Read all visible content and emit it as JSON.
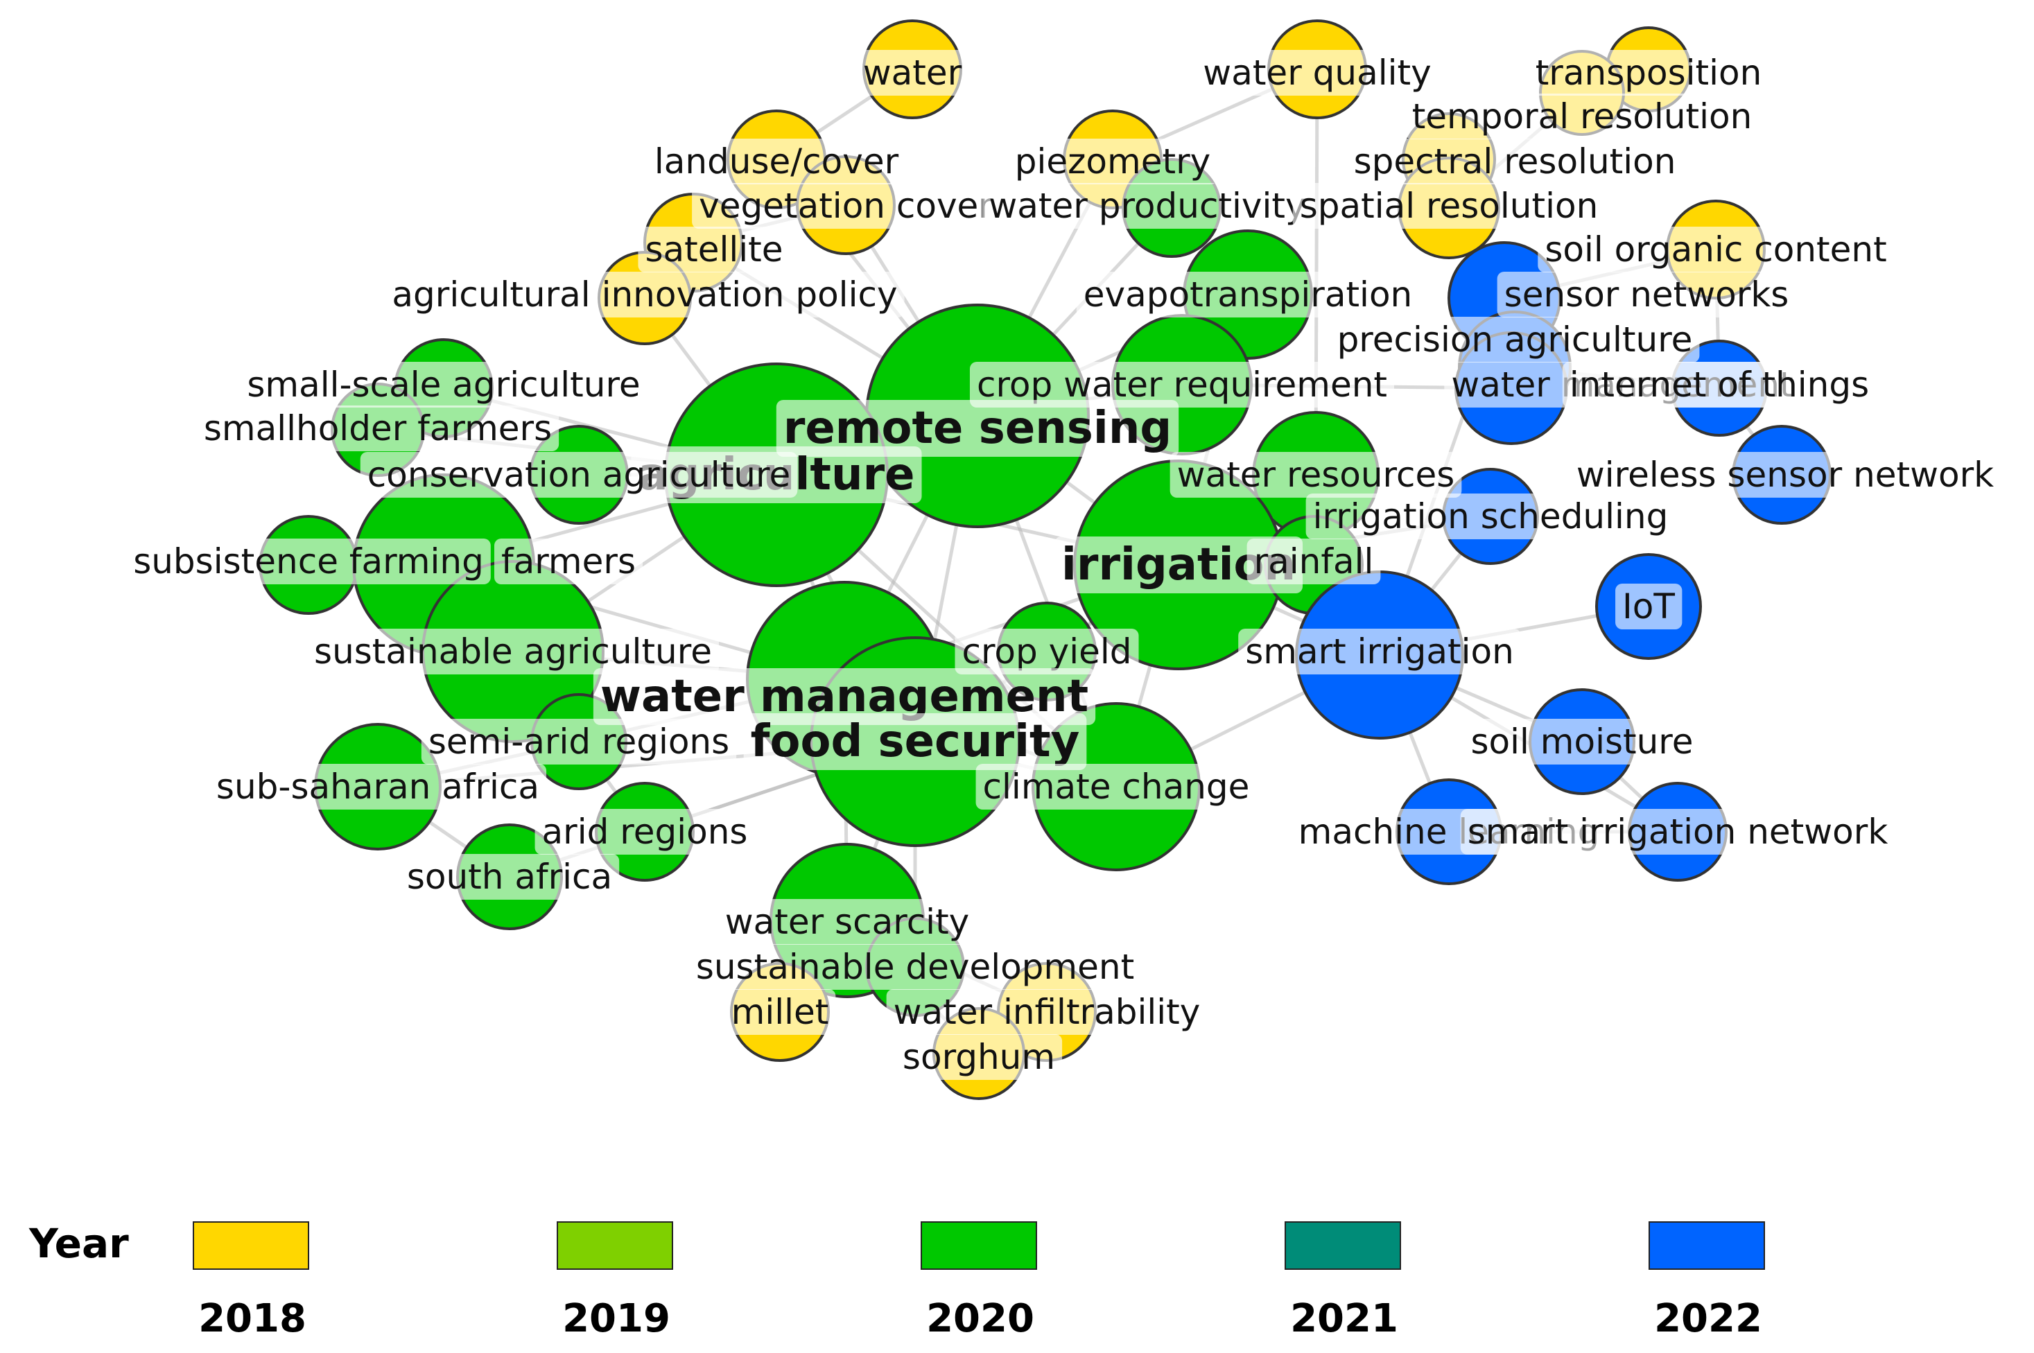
{
  "legend": {
    "title": "Year",
    "items": [
      {
        "year": "2018",
        "color": "#FFD700"
      },
      {
        "year": "2019",
        "color": "#7FD000"
      },
      {
        "year": "2020",
        "color": "#00C800"
      },
      {
        "year": "2021",
        "color": "#008C78"
      },
      {
        "year": "2022",
        "color": "#0064FF"
      }
    ]
  },
  "network": {
    "node_colors": {
      "2018": "#FFD700",
      "2020": "#00C800",
      "2022": "#0064FF"
    },
    "nodes": [
      {
        "id": "water",
        "label": "water",
        "year": "2018"
      },
      {
        "id": "water-quality",
        "label": "water quality",
        "year": "2018"
      },
      {
        "id": "transposition",
        "label": "transposition",
        "year": "2018"
      },
      {
        "id": "temporal-resolution",
        "label": "temporal resolution",
        "year": "2018"
      },
      {
        "id": "landuse-cover",
        "label": "landuse/cover",
        "year": "2018"
      },
      {
        "id": "piezometry",
        "label": "piezometry",
        "year": "2018"
      },
      {
        "id": "spectral-resolution",
        "label": "spectral resolution",
        "year": "2018"
      },
      {
        "id": "vegetation-cover",
        "label": "vegetation cover",
        "year": "2018"
      },
      {
        "id": "water-productivity",
        "label": "water productivity",
        "year": "2020"
      },
      {
        "id": "spatial-resolution",
        "label": "spatial resolution",
        "year": "2018"
      },
      {
        "id": "satellite",
        "label": "satellite",
        "year": "2018"
      },
      {
        "id": "soil-organic-content",
        "label": "soil organic content",
        "year": "2018"
      },
      {
        "id": "agricultural-innovation-policy",
        "label": "agricultural innovation policy",
        "year": "2018"
      },
      {
        "id": "evapotranspiration",
        "label": "evapotranspiration",
        "year": "2020"
      },
      {
        "id": "sensor-networks",
        "label": "sensor networks",
        "year": "2022"
      },
      {
        "id": "precision-agriculture",
        "label": "precision agriculture",
        "year": "2022"
      },
      {
        "id": "small-scale-agriculture",
        "label": "small-scale agriculture",
        "year": "2020"
      },
      {
        "id": "crop-water-requirement",
        "label": "crop water requirement",
        "year": "2020"
      },
      {
        "id": "water-management-2",
        "label": "water management",
        "year": "2022"
      },
      {
        "id": "internet-of-things",
        "label": "internet of things",
        "year": "2022"
      },
      {
        "id": "remote-sensing",
        "label": "remote sensing",
        "year": "2020",
        "bold": true
      },
      {
        "id": "smallholder-farmers",
        "label": "smallholder farmers",
        "year": "2020"
      },
      {
        "id": "agriculture",
        "label": "agriculture",
        "year": "2020",
        "bold": true
      },
      {
        "id": "conservation-agriculture",
        "label": "conservation agriculture",
        "year": "2020"
      },
      {
        "id": "water-resources",
        "label": "water resources",
        "year": "2020"
      },
      {
        "id": "wireless-sensor-network",
        "label": "wireless sensor network",
        "year": "2022"
      },
      {
        "id": "irrigation-scheduling",
        "label": "irrigation scheduling",
        "year": "2022"
      },
      {
        "id": "subsistence-farming",
        "label": "subsistence farming",
        "year": "2020"
      },
      {
        "id": "farmers",
        "label": "farmers",
        "year": "2020"
      },
      {
        "id": "irrigation",
        "label": "irrigation",
        "year": "2020",
        "bold": true
      },
      {
        "id": "rainfall",
        "label": "rainfall",
        "year": "2020"
      },
      {
        "id": "iot",
        "label": "IoT",
        "year": "2022"
      },
      {
        "id": "sustainable-agriculture",
        "label": "sustainable agriculture",
        "year": "2020"
      },
      {
        "id": "crop-yield",
        "label": "crop yield",
        "year": "2020"
      },
      {
        "id": "smart-irrigation",
        "label": "smart irrigation",
        "year": "2022"
      },
      {
        "id": "water-management",
        "label": "water management",
        "year": "2020",
        "bold": true
      },
      {
        "id": "semi-arid-regions",
        "label": "semi-arid regions",
        "year": "2020"
      },
      {
        "id": "food-security",
        "label": "food security",
        "year": "2020",
        "bold": true
      },
      {
        "id": "soil-moisture",
        "label": "soil moisture",
        "year": "2022"
      },
      {
        "id": "sub-saharan-africa",
        "label": "sub-saharan africa",
        "year": "2020"
      },
      {
        "id": "climate-change",
        "label": "climate change",
        "year": "2020"
      },
      {
        "id": "arid-regions",
        "label": "arid regions",
        "year": "2020"
      },
      {
        "id": "machine-learning",
        "label": "machine learning",
        "year": "2022"
      },
      {
        "id": "smart-irrigation-network",
        "label": "smart irrigation network",
        "year": "2022"
      },
      {
        "id": "south-africa",
        "label": "south africa",
        "year": "2020"
      },
      {
        "id": "water-scarcity",
        "label": "water scarcity",
        "year": "2020"
      },
      {
        "id": "sustainable-development",
        "label": "sustainable development",
        "year": "2020"
      },
      {
        "id": "millet",
        "label": "millet",
        "year": "2018"
      },
      {
        "id": "water-infiltrability",
        "label": "water infiltrability",
        "year": "2018"
      },
      {
        "id": "sorghum",
        "label": "sorghum",
        "year": "2018"
      }
    ]
  }
}
